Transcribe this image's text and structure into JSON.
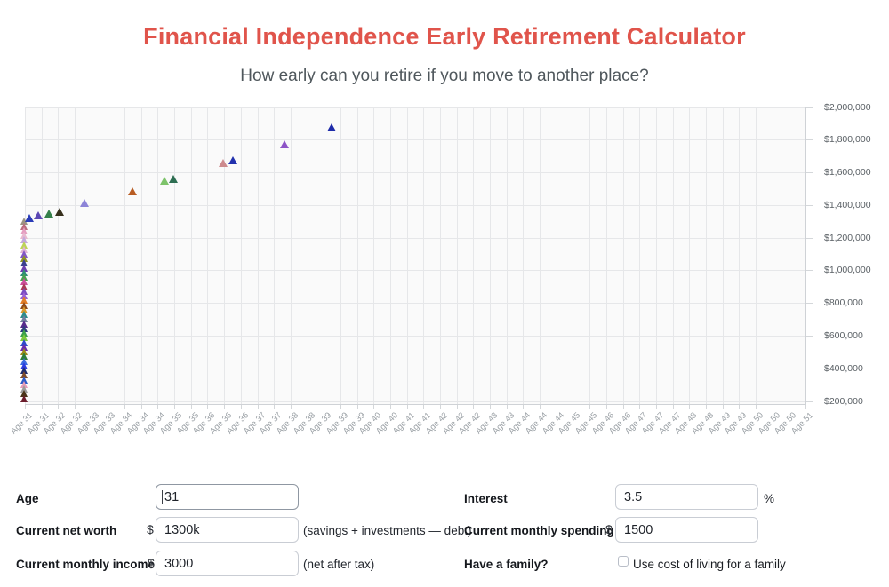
{
  "page": {
    "title": "Financial Independence Early Retirement Calculator",
    "subtitle": "How early can you retire if you move to another place?",
    "accent_color": "#e0544b"
  },
  "chart_data": {
    "type": "scatter",
    "title": "",
    "marker": "triangle",
    "grid": true,
    "legend": "none",
    "y_axis": {
      "min": 200000,
      "max": 2000000,
      "step": 200000,
      "format": "USD",
      "position": "right"
    },
    "y_tick_labels": [
      "$2,000,000",
      "$1,800,000",
      "$1,600,000",
      "$1,400,000",
      "$1,200,000",
      "$1,000,000",
      "$800,000",
      "$600,000",
      "$400,000",
      "$200,000"
    ],
    "x_tick_labels": [
      "Age 31",
      "Age 31",
      "Age 32",
      "Age 32",
      "Age 33",
      "Age 33",
      "Age 34",
      "Age 34",
      "Age 34",
      "Age 35",
      "Age 35",
      "Age 36",
      "Age 36",
      "Age 36",
      "Age 37",
      "Age 37",
      "Age 38",
      "Age 38",
      "Age 39",
      "Age 39",
      "Age 39",
      "Age 40",
      "Age 40",
      "Age 41",
      "Age 41",
      "Age 42",
      "Age 42",
      "Age 42",
      "Age 43",
      "Age 43",
      "Age 44",
      "Age 44",
      "Age 44",
      "Age 45",
      "Age 45",
      "Age 46",
      "Age 46",
      "Age 47",
      "Age 47",
      "Age 47",
      "Age 48",
      "Age 48",
      "Age 49",
      "Age 49",
      "Age 50",
      "Age 50",
      "Age 50",
      "Age 51"
    ],
    "points": [
      {
        "x_index": 0.31,
        "value": 1318000,
        "color": "#2a3cb8"
      },
      {
        "x_index": 0.84,
        "value": 1335000,
        "color": "#5c48b4"
      },
      {
        "x_index": 1.46,
        "value": 1348000,
        "color": "#35804a"
      },
      {
        "x_index": 2.09,
        "value": 1361000,
        "color": "#36301c"
      },
      {
        "x_index": 3.6,
        "value": 1410000,
        "color": "#8d84d8"
      },
      {
        "x_index": 6.49,
        "value": 1486000,
        "color": "#b85c22"
      },
      {
        "x_index": 8.44,
        "value": 1546000,
        "color": "#7dc36a"
      },
      {
        "x_index": 8.96,
        "value": 1562000,
        "color": "#2e6e52"
      },
      {
        "x_index": 11.97,
        "value": 1658000,
        "color": "#cd8b8e"
      },
      {
        "x_index": 12.53,
        "value": 1671000,
        "color": "#2231ad"
      },
      {
        "x_index": 15.65,
        "value": 1773000,
        "color": "#8e54c7"
      },
      {
        "x_index": 18.48,
        "value": 1876000,
        "color": "#1e2ba9"
      }
    ],
    "cluster_at_first_tick": [
      {
        "value": 1300000,
        "color": "#9b9383"
      },
      {
        "value": 1271000,
        "color": "#bc6b7e"
      },
      {
        "value": 1243000,
        "color": "#e59ec0"
      },
      {
        "value": 1214000,
        "color": "#e8b9cf"
      },
      {
        "value": 1186000,
        "color": "#c3a8dc"
      },
      {
        "value": 1157000,
        "color": "#bdd357"
      },
      {
        "value": 1129000,
        "color": "#e0b4d4"
      },
      {
        "value": 1100000,
        "color": "#8257c6"
      },
      {
        "value": 1072000,
        "color": "#8e9125"
      },
      {
        "value": 1043000,
        "color": "#3a3f8e"
      },
      {
        "value": 1015000,
        "color": "#6c3cae"
      },
      {
        "value": 986000,
        "color": "#2f8e76"
      },
      {
        "value": 958000,
        "color": "#48a050"
      },
      {
        "value": 929000,
        "color": "#cb4f9b"
      },
      {
        "value": 901000,
        "color": "#a93a55"
      },
      {
        "value": 872000,
        "color": "#7a4cc3"
      },
      {
        "value": 843000,
        "color": "#9c61d3"
      },
      {
        "value": 815000,
        "color": "#e07c26"
      },
      {
        "value": 786000,
        "color": "#8c4a1b"
      },
      {
        "value": 758000,
        "color": "#d9992a"
      },
      {
        "value": 729000,
        "color": "#2d8c8a"
      },
      {
        "value": 701000,
        "color": "#6e7d9d"
      },
      {
        "value": 672000,
        "color": "#582b8d"
      },
      {
        "value": 644000,
        "color": "#2c3c7e"
      },
      {
        "value": 615000,
        "color": "#3ba04b"
      },
      {
        "value": 587000,
        "color": "#7cc93b"
      },
      {
        "value": 558000,
        "color": "#2d4bca"
      },
      {
        "value": 530000,
        "color": "#6a2ba9"
      },
      {
        "value": 501000,
        "color": "#9b8b1b"
      },
      {
        "value": 472000,
        "color": "#2d7c3b"
      },
      {
        "value": 444000,
        "color": "#3b6ce0"
      },
      {
        "value": 415000,
        "color": "#2c3ce0"
      },
      {
        "value": 387000,
        "color": "#1c2b6c"
      },
      {
        "value": 358000,
        "color": "#7c4b2b"
      },
      {
        "value": 330000,
        "color": "#2c5bc9"
      },
      {
        "value": 301000,
        "color": "#e79cb7"
      },
      {
        "value": 273000,
        "color": "#9b9b9b"
      },
      {
        "value": 244000,
        "color": "#4a3418"
      },
      {
        "value": 215000,
        "color": "#6b1c2b"
      }
    ]
  },
  "form": {
    "age": {
      "label": "Age",
      "value": "31"
    },
    "interest": {
      "label": "Interest",
      "value": "3.5",
      "suffix": "%"
    },
    "net_worth": {
      "label": "Current net worth",
      "prefix": "$",
      "value": "1300k",
      "note": "(savings + investments — debt)"
    },
    "monthly_spending": {
      "label": "Current monthly spending",
      "prefix": "$",
      "value": "1500"
    },
    "monthly_income": {
      "label": "Current monthly income",
      "prefix": "$",
      "value": "3000",
      "note": "(net after tax)"
    },
    "family": {
      "label": "Have a family?",
      "checkbox_label": "Use cost of living for a family",
      "checked": false
    }
  }
}
